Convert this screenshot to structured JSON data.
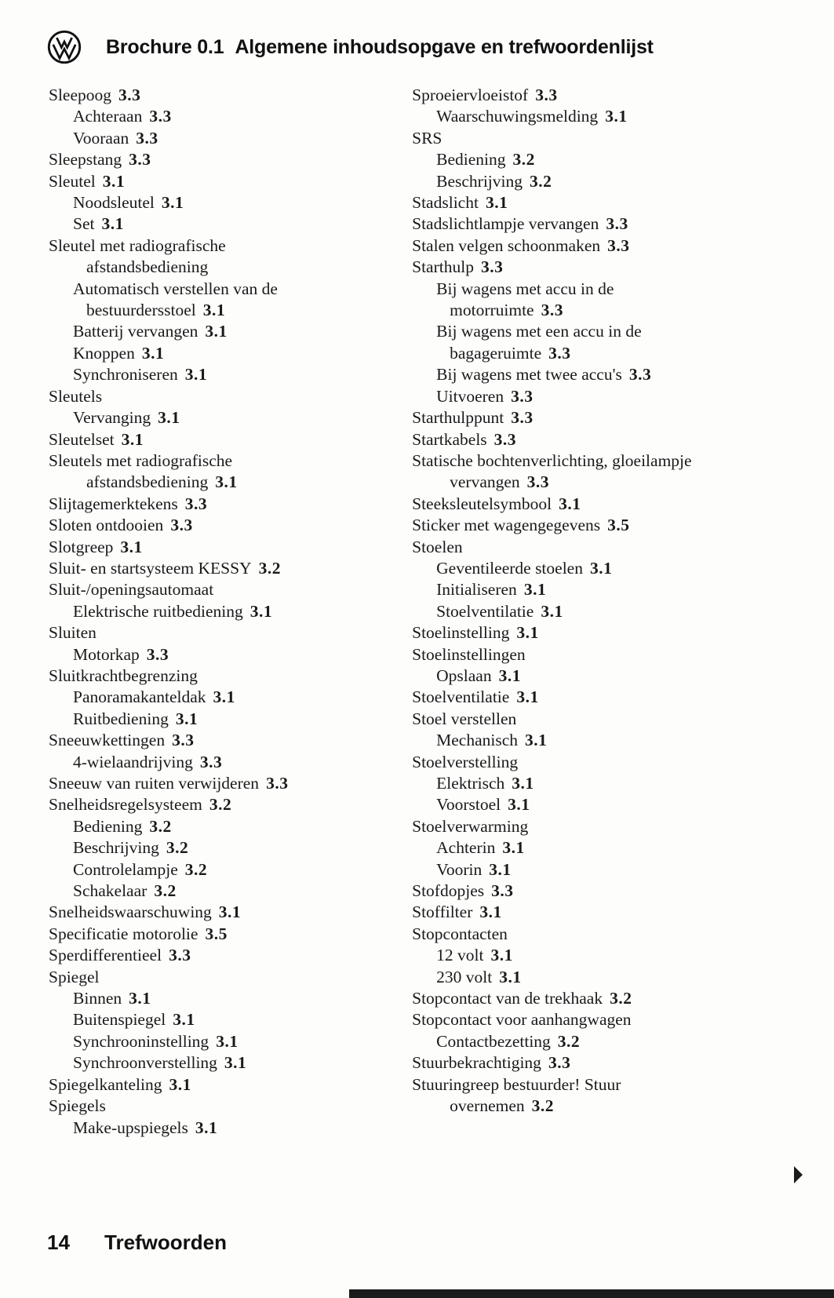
{
  "header": {
    "logo_icon": "vw-logo",
    "brochure_label": "Brochure 0.1",
    "title": "Algemene inhoudsopgave en trefwoordenlijst"
  },
  "index": {
    "left_column": [
      {
        "text": "Sleepoog",
        "page": "3.3",
        "indent": 0
      },
      {
        "text": "Achteraan",
        "page": "3.3",
        "indent": 1
      },
      {
        "text": "Vooraan",
        "page": "3.3",
        "indent": 1
      },
      {
        "text": "Sleepstang",
        "page": "3.3",
        "indent": 0
      },
      {
        "text": "Sleutel",
        "page": "3.1",
        "indent": 0
      },
      {
        "text": "Noodsleutel",
        "page": "3.1",
        "indent": 1
      },
      {
        "text": "Set",
        "page": "3.1",
        "indent": 1
      },
      {
        "text": "Sleutel met radiografische",
        "page": "",
        "indent": 0
      },
      {
        "text": "afstandsbediening",
        "page": "",
        "indent": 2
      },
      {
        "text": "Automatisch verstellen van de",
        "page": "",
        "indent": 1
      },
      {
        "text": "bestuurdersstoel",
        "page": "3.1",
        "indent": 2
      },
      {
        "text": "Batterij vervangen",
        "page": "3.1",
        "indent": 1
      },
      {
        "text": "Knoppen",
        "page": "3.1",
        "indent": 1
      },
      {
        "text": "Synchroniseren",
        "page": "3.1",
        "indent": 1
      },
      {
        "text": "Sleutels",
        "page": "",
        "indent": 0
      },
      {
        "text": "Vervanging",
        "page": "3.1",
        "indent": 1
      },
      {
        "text": "Sleutelset",
        "page": "3.1",
        "indent": 0
      },
      {
        "text": "Sleutels met radiografische",
        "page": "",
        "indent": 0
      },
      {
        "text": "afstandsbediening",
        "page": "3.1",
        "indent": 2
      },
      {
        "text": "Slijtagemerktekens",
        "page": "3.3",
        "indent": 0
      },
      {
        "text": "Sloten ontdooien",
        "page": "3.3",
        "indent": 0
      },
      {
        "text": "Slotgreep",
        "page": "3.1",
        "indent": 0
      },
      {
        "text": "Sluit- en startsysteem KESSY",
        "page": "3.2",
        "indent": 0
      },
      {
        "text": "Sluit-/openingsautomaat",
        "page": "",
        "indent": 0
      },
      {
        "text": "Elektrische ruitbediening",
        "page": "3.1",
        "indent": 1
      },
      {
        "text": "Sluiten",
        "page": "",
        "indent": 0
      },
      {
        "text": "Motorkap",
        "page": "3.3",
        "indent": 1
      },
      {
        "text": "Sluitkrachtbegrenzing",
        "page": "",
        "indent": 0
      },
      {
        "text": "Panoramakanteldak",
        "page": "3.1",
        "indent": 1
      },
      {
        "text": "Ruitbediening",
        "page": "3.1",
        "indent": 1
      },
      {
        "text": "Sneeuwkettingen",
        "page": "3.3",
        "indent": 0
      },
      {
        "text": "4-wielaandrijving",
        "page": "3.3",
        "indent": 1
      },
      {
        "text": "Sneeuw van ruiten verwijderen",
        "page": "3.3",
        "indent": 0
      },
      {
        "text": "Snelheidsregelsysteem",
        "page": "3.2",
        "indent": 0
      },
      {
        "text": "Bediening",
        "page": "3.2",
        "indent": 1
      },
      {
        "text": "Beschrijving",
        "page": "3.2",
        "indent": 1
      },
      {
        "text": "Controlelampje",
        "page": "3.2",
        "indent": 1
      },
      {
        "text": "Schakelaar",
        "page": "3.2",
        "indent": 1
      },
      {
        "text": "Snelheidswaarschuwing",
        "page": "3.1",
        "indent": 0
      },
      {
        "text": "Specificatie motorolie",
        "page": "3.5",
        "indent": 0
      },
      {
        "text": "Sperdifferentieel",
        "page": "3.3",
        "indent": 0
      },
      {
        "text": "Spiegel",
        "page": "",
        "indent": 0
      },
      {
        "text": "Binnen",
        "page": "3.1",
        "indent": 1
      },
      {
        "text": "Buitenspiegel",
        "page": "3.1",
        "indent": 1
      },
      {
        "text": "Synchrooninstelling",
        "page": "3.1",
        "indent": 1
      },
      {
        "text": "Synchroonverstelling",
        "page": "3.1",
        "indent": 1
      },
      {
        "text": "Spiegelkanteling",
        "page": "3.1",
        "indent": 0
      },
      {
        "text": "Spiegels",
        "page": "",
        "indent": 0
      },
      {
        "text": "Make-upspiegels",
        "page": "3.1",
        "indent": 1
      }
    ],
    "right_column": [
      {
        "text": "Sproeiervloeistof",
        "page": "3.3",
        "indent": 0
      },
      {
        "text": "Waarschuwingsmelding",
        "page": "3.1",
        "indent": 1
      },
      {
        "text": "SRS",
        "page": "",
        "indent": 0
      },
      {
        "text": "Bediening",
        "page": "3.2",
        "indent": 1
      },
      {
        "text": "Beschrijving",
        "page": "3.2",
        "indent": 1
      },
      {
        "text": "Stadslicht",
        "page": "3.1",
        "indent": 0
      },
      {
        "text": "Stadslichtlampje vervangen",
        "page": "3.3",
        "indent": 0
      },
      {
        "text": "Stalen velgen schoonmaken",
        "page": "3.3",
        "indent": 0
      },
      {
        "text": "Starthulp",
        "page": "3.3",
        "indent": 0
      },
      {
        "text": "Bij wagens met accu in de",
        "page": "",
        "indent": 1
      },
      {
        "text": "motorruimte",
        "page": "3.3",
        "indent": 2
      },
      {
        "text": "Bij wagens met een accu in de",
        "page": "",
        "indent": 1
      },
      {
        "text": "bagageruimte",
        "page": "3.3",
        "indent": 2
      },
      {
        "text": "Bij wagens met twee accu's",
        "page": "3.3",
        "indent": 1
      },
      {
        "text": "Uitvoeren",
        "page": "3.3",
        "indent": 1
      },
      {
        "text": "Starthulppunt",
        "page": "3.3",
        "indent": 0
      },
      {
        "text": "Startkabels",
        "page": "3.3",
        "indent": 0
      },
      {
        "text": "Statische bochtenverlichting, gloeilampje",
        "page": "",
        "indent": 0
      },
      {
        "text": "vervangen",
        "page": "3.3",
        "indent": 2
      },
      {
        "text": "Steeksleutelsymbool",
        "page": "3.1",
        "indent": 0
      },
      {
        "text": "Sticker met wagengegevens",
        "page": "3.5",
        "indent": 0
      },
      {
        "text": "Stoelen",
        "page": "",
        "indent": 0
      },
      {
        "text": "Geventileerde stoelen",
        "page": "3.1",
        "indent": 1
      },
      {
        "text": "Initialiseren",
        "page": "3.1",
        "indent": 1
      },
      {
        "text": "Stoelventilatie",
        "page": "3.1",
        "indent": 1
      },
      {
        "text": "Stoelinstelling",
        "page": "3.1",
        "indent": 0
      },
      {
        "text": "Stoelinstellingen",
        "page": "",
        "indent": 0
      },
      {
        "text": "Opslaan",
        "page": "3.1",
        "indent": 1
      },
      {
        "text": "Stoelventilatie",
        "page": "3.1",
        "indent": 0
      },
      {
        "text": "Stoel verstellen",
        "page": "",
        "indent": 0
      },
      {
        "text": "Mechanisch",
        "page": "3.1",
        "indent": 1
      },
      {
        "text": "Stoelverstelling",
        "page": "",
        "indent": 0
      },
      {
        "text": "Elektrisch",
        "page": "3.1",
        "indent": 1
      },
      {
        "text": "Voorstoel",
        "page": "3.1",
        "indent": 1
      },
      {
        "text": "Stoelverwarming",
        "page": "",
        "indent": 0
      },
      {
        "text": "Achterin",
        "page": "3.1",
        "indent": 1
      },
      {
        "text": "Voorin",
        "page": "3.1",
        "indent": 1
      },
      {
        "text": "Stofdopjes",
        "page": "3.3",
        "indent": 0
      },
      {
        "text": "Stoffilter",
        "page": "3.1",
        "indent": 0
      },
      {
        "text": "Stopcontacten",
        "page": "",
        "indent": 0
      },
      {
        "text": "12 volt",
        "page": "3.1",
        "indent": 1
      },
      {
        "text": "230 volt",
        "page": "3.1",
        "indent": 1
      },
      {
        "text": "Stopcontact van de trekhaak",
        "page": "3.2",
        "indent": 0
      },
      {
        "text": "Stopcontact voor aanhangwagen",
        "page": "",
        "indent": 0
      },
      {
        "text": "Contactbezetting",
        "page": "3.2",
        "indent": 1
      },
      {
        "text": "Stuurbekrachtiging",
        "page": "3.3",
        "indent": 0
      },
      {
        "text": "Stuuringreep bestuurder! Stuur",
        "page": "",
        "indent": 0
      },
      {
        "text": "overnemen",
        "page": "3.2",
        "indent": 2
      }
    ]
  },
  "footer": {
    "page_number": "14",
    "section_label": "Trefwoorden"
  },
  "icons": {
    "continuation_arrow": "right-triangle"
  },
  "colors": {
    "text": "#1a1a1a",
    "background": "#fdfdfc",
    "print_bar": "#1b1b1b"
  }
}
